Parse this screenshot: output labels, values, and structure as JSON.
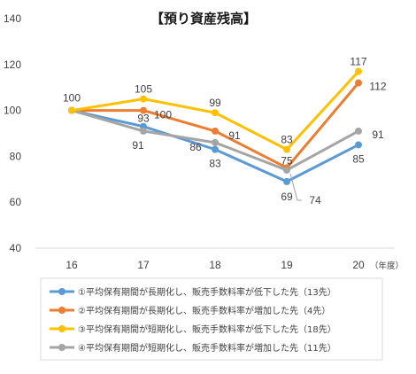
{
  "chart_data": {
    "type": "line",
    "title": "【預り資産残高】",
    "x_unit_label": "（年度）",
    "categories": [
      "16",
      "17",
      "18",
      "19",
      "20"
    ],
    "ylim": [
      40,
      140
    ],
    "yticks": [
      40,
      60,
      80,
      100,
      120,
      140
    ],
    "grid": false,
    "legend_position": "bottom",
    "series": [
      {
        "name": "①平均保有期間が長期化し、販売手数料率が低下した先（13先）",
        "color": "#5b9bd5",
        "values": [
          100,
          93,
          83,
          69,
          85
        ],
        "labels": [
          "",
          "93",
          "83",
          "69",
          "85"
        ]
      },
      {
        "name": "②平均保有期間が長期化し、販売手数料率が増加した先（4先）",
        "color": "#ed7d31",
        "values": [
          100,
          100,
          91,
          75,
          112
        ],
        "labels": [
          "",
          "100",
          "91",
          "75",
          "112"
        ]
      },
      {
        "name": "③平均保有期間が短期化し、販売手数料率が低下した先（18先）",
        "color": "#ffc000",
        "values": [
          100,
          105,
          99,
          83,
          117
        ],
        "labels": [
          "100",
          "105",
          "99",
          "83",
          "117"
        ]
      },
      {
        "name": "④平均保有期間が短期化し、販売手数料率が増加した先（11先）",
        "color": "#a5a5a5",
        "values": [
          100,
          91,
          86,
          74,
          91
        ],
        "labels": [
          "",
          "91",
          "86",
          "74",
          "91"
        ]
      }
    ]
  }
}
